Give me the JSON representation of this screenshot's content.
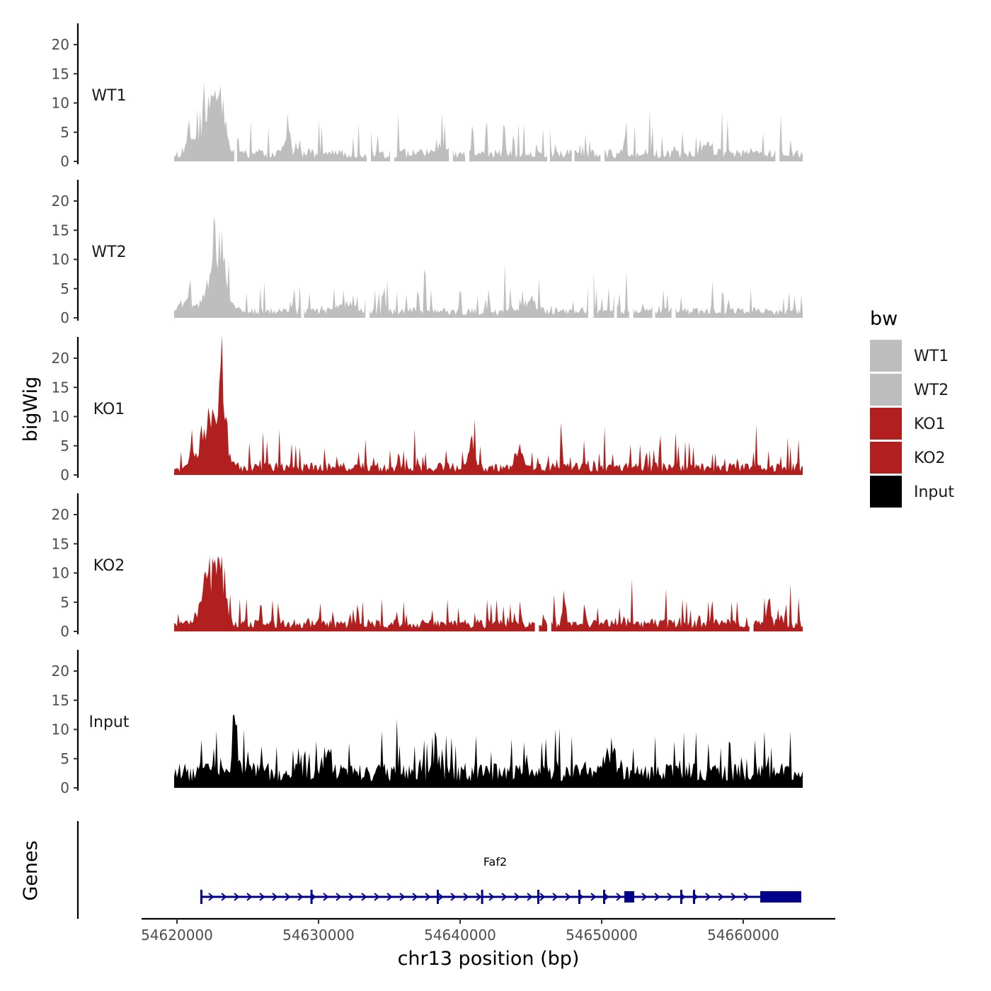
{
  "chart_data": {
    "type": "area",
    "chromosome": "chr13",
    "x_range": [
      54619800,
      54664200
    ],
    "xlim": [
      54617500,
      54666500
    ],
    "ylim": [
      0,
      24
    ],
    "y_ticks": [
      0,
      5,
      10,
      15,
      20
    ],
    "x_ticks": [
      54620000,
      54630000,
      54640000,
      54650000,
      54660000
    ],
    "x_tick_labels": [
      "54620000",
      "54630000",
      "54640000",
      "54650000",
      "54660000"
    ],
    "xlabel": "chr13 position (bp)",
    "ylabel_tracks": "bigWig",
    "ylabel_genes": "Genes",
    "legend": {
      "title": "bw",
      "entries": [
        {
          "label": "WT1",
          "color": "#BEBEBE"
        },
        {
          "label": "WT2",
          "color": "#BEBEBE"
        },
        {
          "label": "KO1",
          "color": "#B21F1F"
        },
        {
          "label": "KO2",
          "color": "#B21F1F"
        },
        {
          "label": "Input",
          "color": "#000000"
        }
      ]
    },
    "series": [
      {
        "name": "WT1",
        "color": "#BEBEBE",
        "seed": 11,
        "base": 1.8,
        "spike": 5.5,
        "gap": 0.05,
        "peaks": [
          [
            54622300,
            700,
            9
          ],
          [
            54623100,
            400,
            8
          ],
          [
            54621000,
            500,
            2
          ],
          [
            54627800,
            400,
            2
          ],
          [
            54638500,
            500,
            1.5
          ],
          [
            54657500,
            500,
            1.5
          ]
        ]
      },
      {
        "name": "WT2",
        "color": "#BEBEBE",
        "seed": 23,
        "base": 1.5,
        "spike": 5.0,
        "gap": 0.05,
        "peaks": [
          [
            54622600,
            700,
            9
          ],
          [
            54623200,
            500,
            6
          ],
          [
            54620500,
            600,
            2
          ],
          [
            54632000,
            800,
            1
          ],
          [
            54645000,
            600,
            1.5
          ]
        ]
      },
      {
        "name": "KO1",
        "color": "#B21F1F",
        "seed": 37,
        "base": 1.8,
        "spike": 4.5,
        "gap": 0.05,
        "peaks": [
          [
            54622500,
            800,
            8
          ],
          [
            54623200,
            300,
            12
          ],
          [
            54621000,
            400,
            2
          ],
          [
            54640800,
            300,
            4
          ],
          [
            54644200,
            300,
            3
          ]
        ]
      },
      {
        "name": "KO2",
        "color": "#B21F1F",
        "seed": 53,
        "base": 1.8,
        "spike": 4.5,
        "gap": 0.04,
        "peaks": [
          [
            54622300,
            800,
            7
          ],
          [
            54623100,
            500,
            6
          ],
          [
            54647300,
            150,
            5
          ],
          [
            54661800,
            150,
            4
          ]
        ]
      },
      {
        "name": "Input",
        "color": "#000000",
        "seed": 71,
        "base": 3.6,
        "spike": 6.5,
        "gap": 0.0,
        "peaks": [
          [
            54624200,
            300,
            6
          ],
          [
            54630700,
            250,
            4
          ],
          [
            54638300,
            300,
            5
          ],
          [
            54650500,
            600,
            4
          ]
        ]
      }
    ],
    "gene": {
      "name": "Faf2",
      "strand": "+",
      "color": "#00008B",
      "start": 54621650,
      "end": 54664100,
      "exons": [
        [
          54621650,
          54621780
        ],
        [
          54629430,
          54629520
        ],
        [
          54638350,
          54638450
        ],
        [
          54641480,
          54641560
        ],
        [
          54645450,
          54645530
        ],
        [
          54648350,
          54648440
        ],
        [
          54650100,
          54650230
        ],
        [
          54651600,
          54652300
        ],
        [
          54655550,
          54655650
        ],
        [
          54656450,
          54656530
        ],
        [
          54661200,
          54664100
        ]
      ]
    }
  }
}
